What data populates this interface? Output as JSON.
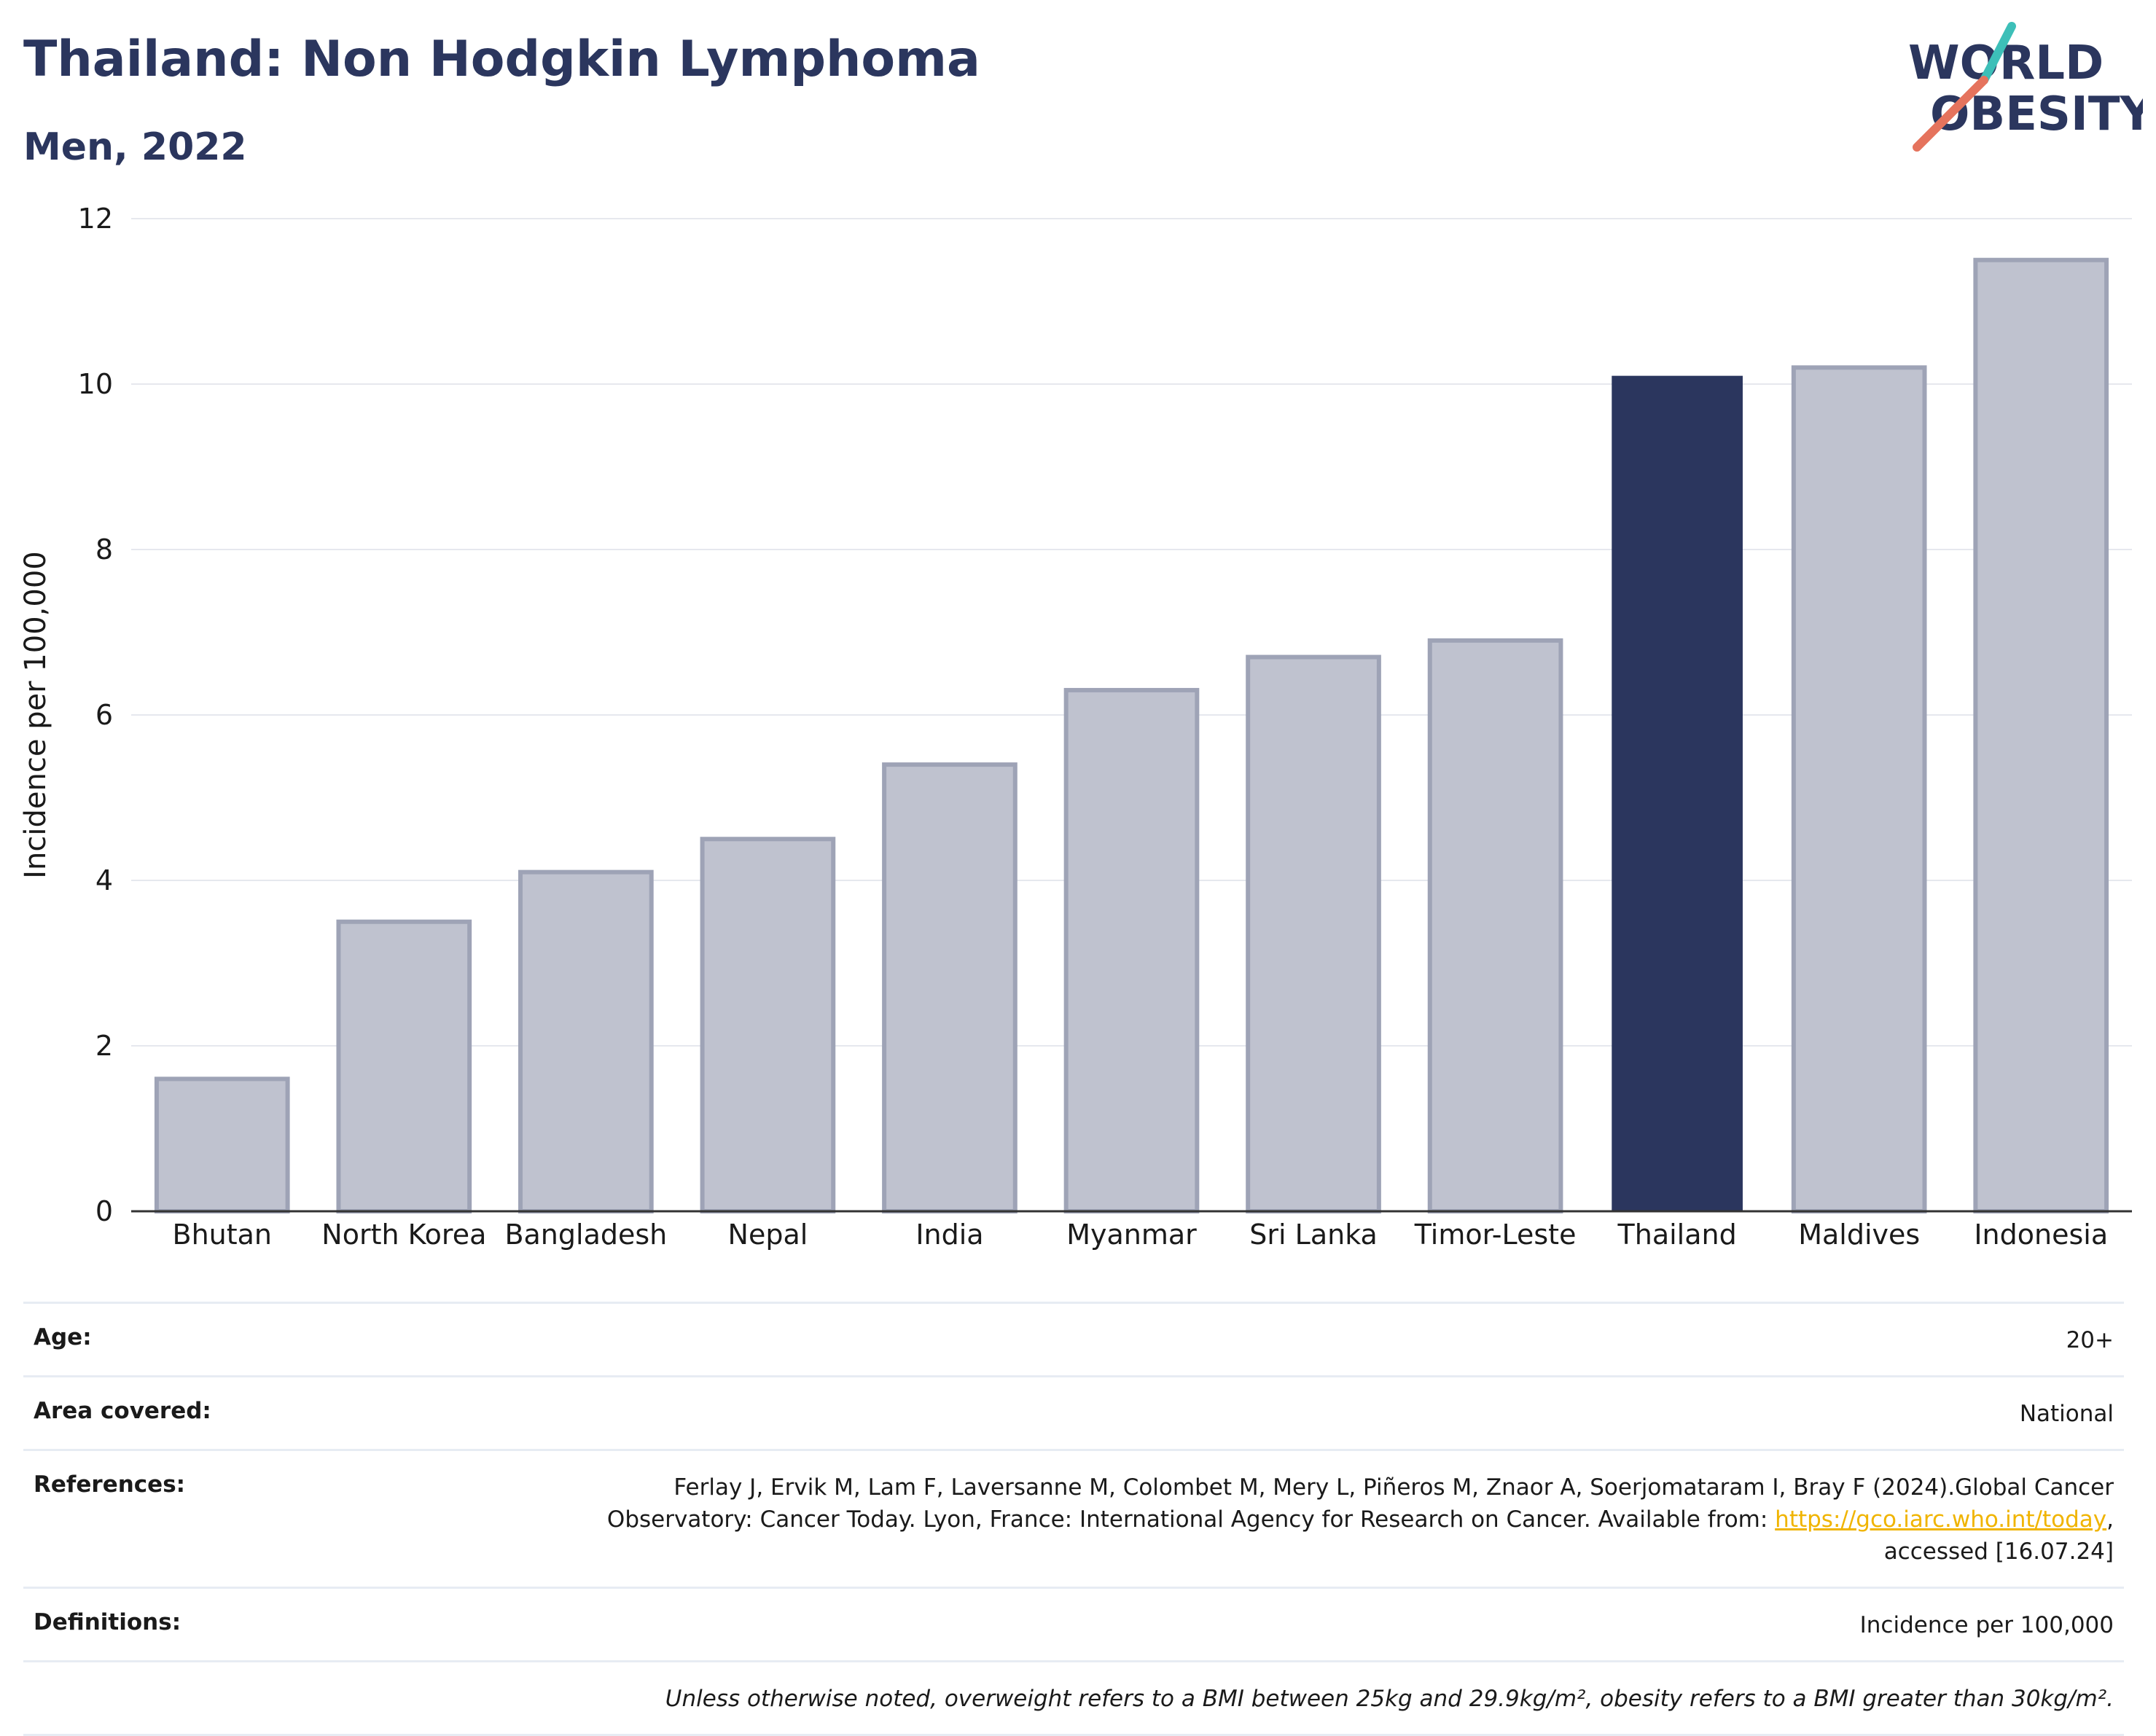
{
  "header": {
    "title": "Thailand: Non Hodgkin Lymphoma",
    "subtitle": "Men, 2022"
  },
  "logo": {
    "line1": "WORLD",
    "line2": "OBESITY"
  },
  "colors": {
    "highlight": "#2b365e",
    "bar_fill": "#bfc2cf",
    "bar_stroke": "#9ea3b6",
    "grid": "#e6e8ee",
    "logo_teal": "#3dbfb8",
    "logo_coral": "#e5735d"
  },
  "chart_data": {
    "type": "bar",
    "categories": [
      "Bhutan",
      "North Korea",
      "Bangladesh",
      "Nepal",
      "India",
      "Myanmar",
      "Sri Lanka",
      "Timor-Leste",
      "Thailand",
      "Maldives",
      "Indonesia"
    ],
    "values": [
      1.6,
      3.5,
      4.1,
      4.5,
      5.4,
      6.3,
      6.7,
      6.9,
      10.1,
      10.2,
      11.5
    ],
    "highlight_category": "Thailand",
    "ylabel": "Incidence per 100,000",
    "ylim": [
      0,
      12
    ],
    "yticks": [
      0,
      2,
      4,
      6,
      8,
      10,
      12
    ],
    "grid": true
  },
  "info": {
    "age": {
      "label": "Age:",
      "value": "20+"
    },
    "area": {
      "label": "Area covered:",
      "value": "National"
    },
    "references": {
      "label": "References:",
      "line1": "Ferlay J, Ervik M, Lam F, Laversanne M, Colombet M, Mery L, Piñeros M, Znaor A, Soerjomataram I, Bray F (2024).Global Cancer",
      "line2_pre": "Observatory: Cancer Today. Lyon, France: International Agency for Research on Cancer. Available from: ",
      "link": "https://gco.iarc.who.int/today",
      "line2_post": ",",
      "line3": "accessed [16.07.24]"
    },
    "definitions": {
      "label": "Definitions:",
      "value": "Incidence per 100,000"
    },
    "note": "Unless otherwise noted, overweight refers to a BMI between 25kg and 29.9kg/m², obesity refers to a BMI greater than 30kg/m²."
  }
}
